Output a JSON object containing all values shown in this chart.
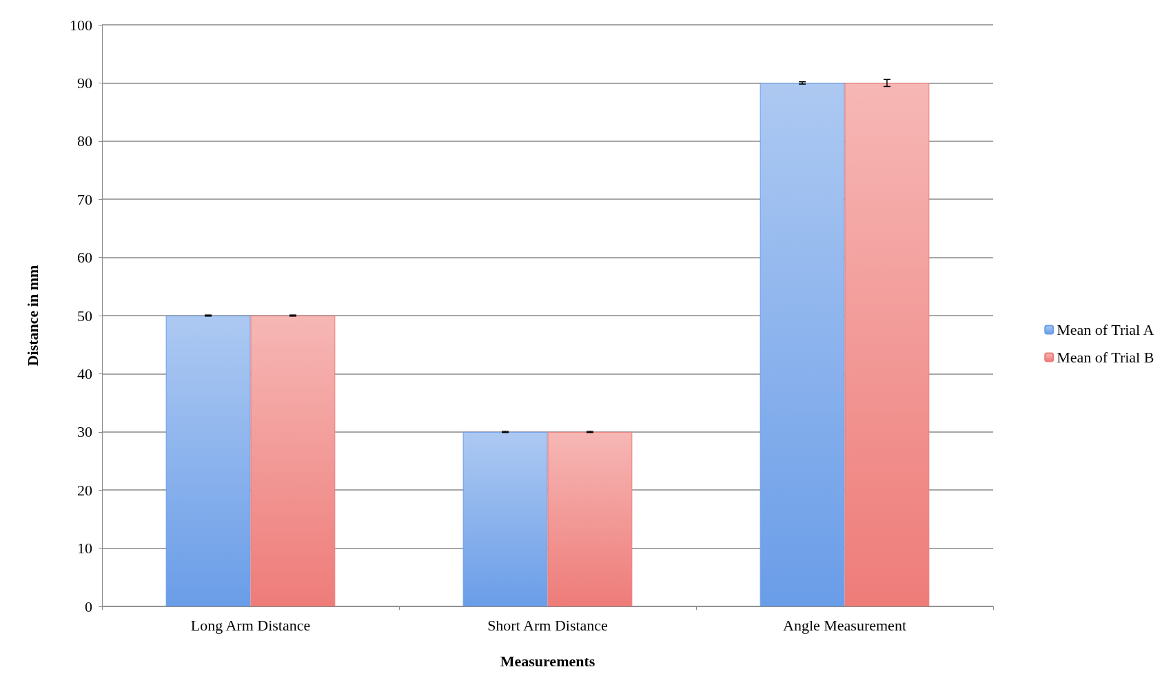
{
  "chart_data": {
    "type": "bar",
    "xlabel": "Measurements",
    "ylabel": "Distance in mm",
    "categories": [
      "Long Arm Distance",
      "Short Arm Distance",
      "Angle Measurement"
    ],
    "series": [
      {
        "name": "Mean of Trial A",
        "color": "#6a9de8",
        "values": [
          50,
          30,
          90
        ],
        "errors": [
          0.1,
          0.1,
          0.2
        ]
      },
      {
        "name": "Mean of Trial B",
        "color": "#ee7c79",
        "values": [
          50,
          30,
          90
        ],
        "errors": [
          0.1,
          0.1,
          0.6
        ]
      }
    ],
    "ylim": [
      0,
      100
    ],
    "yticks": [
      0,
      10,
      20,
      30,
      40,
      50,
      60,
      70,
      80,
      90,
      100
    ],
    "grid": "y",
    "legend": "right"
  }
}
